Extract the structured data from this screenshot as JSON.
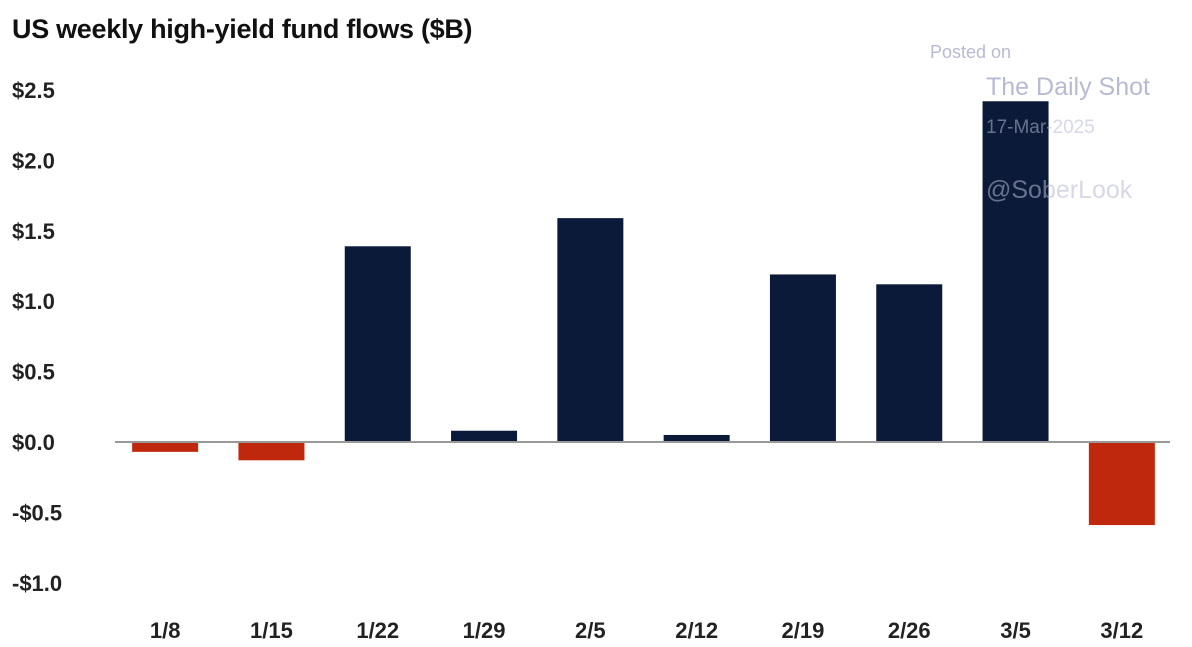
{
  "watermark": {
    "line1": "Posted on",
    "line2": "The Daily Shot",
    "line3": "17-Mar-2025",
    "line4": "@SoberLook"
  },
  "colors": {
    "positive": "#0b1a38",
    "negative": "#c0280e",
    "axis": "#999999"
  },
  "chart_data": {
    "type": "bar",
    "title": "US weekly high-yield fund flows ($B)",
    "xlabel": "",
    "ylabel": "",
    "categories": [
      "1/8",
      "1/15",
      "1/22",
      "1/29",
      "2/5",
      "2/12",
      "2/19",
      "2/26",
      "3/5",
      "3/12"
    ],
    "values": [
      -0.07,
      -0.13,
      1.39,
      0.08,
      1.59,
      0.05,
      1.19,
      1.12,
      2.42,
      -0.59
    ],
    "ylim": [
      -1.0,
      2.5
    ],
    "yticks": [
      2.5,
      2.0,
      1.5,
      1.0,
      0.5,
      0.0,
      -0.5,
      -1.0
    ],
    "ytick_labels": [
      "$2.5",
      "$2.0",
      "$1.5",
      "$1.0",
      "$0.5",
      "$0.0",
      "-$0.5",
      "-$1.0"
    ],
    "grid": false,
    "legend": "none"
  }
}
